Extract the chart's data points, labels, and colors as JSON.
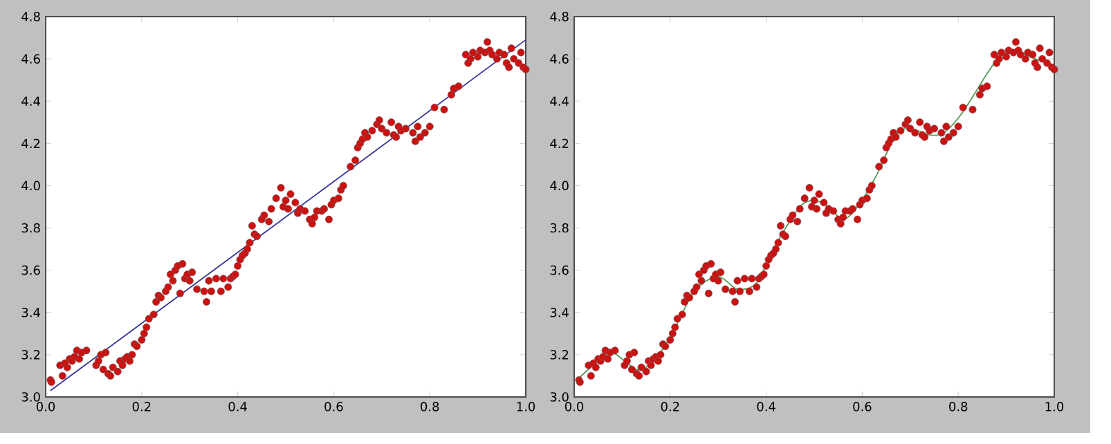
{
  "chart_data": [
    {
      "type": "scatter",
      "xlim": [
        0,
        1
      ],
      "ylim": [
        3.0,
        4.8
      ],
      "xticks": [
        {
          "value": 0,
          "label": "0.0"
        },
        {
          "value": 0.2,
          "label": "0.2"
        },
        {
          "value": 0.4,
          "label": "0.4"
        },
        {
          "value": 0.6,
          "label": "0.6"
        },
        {
          "value": 0.8,
          "label": "0.8"
        },
        {
          "value": 1,
          "label": "1.0"
        }
      ],
      "yticks": [
        {
          "value": 3.0,
          "label": "3.0"
        },
        {
          "value": 3.2,
          "label": "3.2"
        },
        {
          "value": 3.4,
          "label": "3.4"
        },
        {
          "value": 3.6,
          "label": "3.6"
        },
        {
          "value": 3.8,
          "label": "3.8"
        },
        {
          "value": 4.0,
          "label": "4.0"
        },
        {
          "value": 4.2,
          "label": "4.2"
        },
        {
          "value": 4.4,
          "label": "4.4"
        },
        {
          "value": 4.6,
          "label": "4.6"
        },
        {
          "value": 4.8,
          "label": "4.8"
        }
      ],
      "series": [
        {
          "type": "scatter",
          "marker": "circle",
          "color": "#cc1111",
          "x": [
            0.01,
            0.012,
            0.03,
            0.035,
            0.04,
            0.045,
            0.05,
            0.055,
            0.06,
            0.065,
            0.07,
            0.075,
            0.085,
            0.105,
            0.11,
            0.115,
            0.12,
            0.125,
            0.13,
            0.135,
            0.14,
            0.15,
            0.155,
            0.16,
            0.165,
            0.17,
            0.175,
            0.18,
            0.185,
            0.19,
            0.2,
            0.205,
            0.21,
            0.215,
            0.225,
            0.23,
            0.235,
            0.24,
            0.25,
            0.255,
            0.26,
            0.265,
            0.27,
            0.275,
            0.28,
            0.285,
            0.29,
            0.295,
            0.3,
            0.305,
            0.315,
            0.33,
            0.335,
            0.34,
            0.345,
            0.355,
            0.365,
            0.37,
            0.38,
            0.385,
            0.39,
            0.395,
            0.4,
            0.405,
            0.41,
            0.415,
            0.42,
            0.425,
            0.43,
            0.435,
            0.44,
            0.45,
            0.455,
            0.465,
            0.47,
            0.48,
            0.49,
            0.495,
            0.5,
            0.505,
            0.51,
            0.52,
            0.525,
            0.53,
            0.54,
            0.55,
            0.555,
            0.56,
            0.565,
            0.575,
            0.58,
            0.59,
            0.595,
            0.6,
            0.61,
            0.615,
            0.62,
            0.635,
            0.645,
            0.65,
            0.655,
            0.66,
            0.665,
            0.67,
            0.68,
            0.69,
            0.695,
            0.7,
            0.71,
            0.72,
            0.725,
            0.73,
            0.735,
            0.74,
            0.75,
            0.765,
            0.77,
            0.775,
            0.78,
            0.79,
            0.8,
            0.81,
            0.83,
            0.845,
            0.85,
            0.86,
            0.875,
            0.88,
            0.885,
            0.89,
            0.9,
            0.905,
            0.915,
            0.92,
            0.925,
            0.93,
            0.94,
            0.945,
            0.955,
            0.96,
            0.965,
            0.97,
            0.975,
            0.985,
            0.99,
            0.995,
            1.0
          ],
          "values": [
            3.08,
            3.07,
            3.15,
            3.1,
            3.16,
            3.14,
            3.18,
            3.17,
            3.19,
            3.22,
            3.18,
            3.21,
            3.22,
            3.15,
            3.17,
            3.2,
            3.13,
            3.21,
            3.11,
            3.1,
            3.14,
            3.12,
            3.17,
            3.15,
            3.18,
            3.19,
            3.17,
            3.2,
            3.25,
            3.24,
            3.27,
            3.3,
            3.33,
            3.37,
            3.39,
            3.45,
            3.48,
            3.47,
            3.5,
            3.52,
            3.58,
            3.55,
            3.6,
            3.62,
            3.49,
            3.63,
            3.56,
            3.58,
            3.55,
            3.59,
            3.51,
            3.5,
            3.45,
            3.55,
            3.5,
            3.56,
            3.5,
            3.56,
            3.52,
            3.56,
            3.57,
            3.58,
            3.62,
            3.65,
            3.67,
            3.68,
            3.7,
            3.73,
            3.81,
            3.77,
            3.76,
            3.84,
            3.86,
            3.83,
            3.89,
            3.94,
            3.99,
            3.9,
            3.93,
            3.89,
            3.96,
            3.92,
            3.87,
            3.89,
            3.88,
            3.84,
            3.82,
            3.85,
            3.88,
            3.88,
            3.89,
            3.84,
            3.91,
            3.93,
            3.94,
            3.98,
            4.0,
            4.09,
            4.12,
            4.18,
            4.2,
            4.22,
            4.25,
            4.23,
            4.26,
            4.29,
            4.31,
            4.27,
            4.25,
            4.3,
            4.24,
            4.23,
            4.28,
            4.26,
            4.27,
            4.25,
            4.21,
            4.28,
            4.23,
            4.25,
            4.28,
            4.37,
            4.36,
            4.43,
            4.46,
            4.47,
            4.62,
            4.58,
            4.6,
            4.63,
            4.61,
            4.64,
            4.63,
            4.68,
            4.64,
            4.62,
            4.6,
            4.63,
            4.62,
            4.58,
            4.56,
            4.65,
            4.6,
            4.58,
            4.63,
            4.56,
            4.55
          ]
        },
        {
          "type": "line",
          "color": "#333399",
          "x": [
            0.01,
            1.0
          ],
          "values": [
            3.03,
            4.69
          ]
        }
      ]
    },
    {
      "type": "scatter",
      "xlim": [
        0,
        1
      ],
      "ylim": [
        3.0,
        4.8
      ],
      "xticks": [
        {
          "value": 0,
          "label": "0.0"
        },
        {
          "value": 0.2,
          "label": "0.2"
        },
        {
          "value": 0.4,
          "label": "0.4"
        },
        {
          "value": 0.6,
          "label": "0.6"
        },
        {
          "value": 0.8,
          "label": "0.8"
        },
        {
          "value": 1,
          "label": "1.0"
        }
      ],
      "yticks": [
        {
          "value": 3.0,
          "label": "3.0"
        },
        {
          "value": 3.2,
          "label": "3.2"
        },
        {
          "value": 3.4,
          "label": "3.4"
        },
        {
          "value": 3.6,
          "label": "3.6"
        },
        {
          "value": 3.8,
          "label": "3.8"
        },
        {
          "value": 4.0,
          "label": "4.0"
        },
        {
          "value": 4.2,
          "label": "4.2"
        },
        {
          "value": 4.4,
          "label": "4.4"
        },
        {
          "value": 4.6,
          "label": "4.6"
        },
        {
          "value": 4.8,
          "label": "4.8"
        }
      ],
      "series": [
        {
          "type": "scatter",
          "marker": "circle",
          "color": "#cc1111",
          "x": [
            0.01,
            0.012,
            0.03,
            0.035,
            0.04,
            0.045,
            0.05,
            0.055,
            0.06,
            0.065,
            0.07,
            0.075,
            0.085,
            0.105,
            0.11,
            0.115,
            0.12,
            0.125,
            0.13,
            0.135,
            0.14,
            0.15,
            0.155,
            0.16,
            0.165,
            0.17,
            0.175,
            0.18,
            0.185,
            0.19,
            0.2,
            0.205,
            0.21,
            0.215,
            0.225,
            0.23,
            0.235,
            0.24,
            0.25,
            0.255,
            0.26,
            0.265,
            0.27,
            0.275,
            0.28,
            0.285,
            0.29,
            0.295,
            0.3,
            0.305,
            0.315,
            0.33,
            0.335,
            0.34,
            0.345,
            0.355,
            0.365,
            0.37,
            0.38,
            0.385,
            0.39,
            0.395,
            0.4,
            0.405,
            0.41,
            0.415,
            0.42,
            0.425,
            0.43,
            0.435,
            0.44,
            0.45,
            0.455,
            0.465,
            0.47,
            0.48,
            0.49,
            0.495,
            0.5,
            0.505,
            0.51,
            0.52,
            0.525,
            0.53,
            0.54,
            0.55,
            0.555,
            0.56,
            0.565,
            0.575,
            0.58,
            0.59,
            0.595,
            0.6,
            0.61,
            0.615,
            0.62,
            0.635,
            0.645,
            0.65,
            0.655,
            0.66,
            0.665,
            0.67,
            0.68,
            0.69,
            0.695,
            0.7,
            0.71,
            0.72,
            0.725,
            0.73,
            0.735,
            0.74,
            0.75,
            0.765,
            0.77,
            0.775,
            0.78,
            0.79,
            0.8,
            0.81,
            0.83,
            0.845,
            0.85,
            0.86,
            0.875,
            0.88,
            0.885,
            0.89,
            0.9,
            0.905,
            0.915,
            0.92,
            0.925,
            0.93,
            0.94,
            0.945,
            0.955,
            0.96,
            0.965,
            0.97,
            0.975,
            0.985,
            0.99,
            0.995,
            1.0
          ],
          "values": [
            3.08,
            3.07,
            3.15,
            3.1,
            3.16,
            3.14,
            3.18,
            3.17,
            3.19,
            3.22,
            3.18,
            3.21,
            3.22,
            3.15,
            3.17,
            3.2,
            3.13,
            3.21,
            3.11,
            3.1,
            3.14,
            3.12,
            3.17,
            3.15,
            3.18,
            3.19,
            3.17,
            3.2,
            3.25,
            3.24,
            3.27,
            3.3,
            3.33,
            3.37,
            3.39,
            3.45,
            3.48,
            3.47,
            3.5,
            3.52,
            3.58,
            3.55,
            3.6,
            3.62,
            3.49,
            3.63,
            3.56,
            3.58,
            3.55,
            3.59,
            3.51,
            3.5,
            3.45,
            3.55,
            3.5,
            3.56,
            3.5,
            3.56,
            3.52,
            3.56,
            3.57,
            3.58,
            3.62,
            3.65,
            3.67,
            3.68,
            3.7,
            3.73,
            3.81,
            3.77,
            3.76,
            3.84,
            3.86,
            3.83,
            3.89,
            3.94,
            3.99,
            3.9,
            3.93,
            3.89,
            3.96,
            3.92,
            3.87,
            3.89,
            3.88,
            3.84,
            3.82,
            3.85,
            3.88,
            3.88,
            3.89,
            3.84,
            3.91,
            3.93,
            3.94,
            3.98,
            4.0,
            4.09,
            4.12,
            4.18,
            4.2,
            4.22,
            4.25,
            4.23,
            4.26,
            4.29,
            4.31,
            4.27,
            4.25,
            4.3,
            4.24,
            4.23,
            4.28,
            4.26,
            4.27,
            4.25,
            4.21,
            4.28,
            4.23,
            4.25,
            4.28,
            4.37,
            4.36,
            4.43,
            4.46,
            4.47,
            4.62,
            4.58,
            4.6,
            4.63,
            4.61,
            4.64,
            4.63,
            4.68,
            4.64,
            4.62,
            4.6,
            4.63,
            4.62,
            4.58,
            4.56,
            4.65,
            4.6,
            4.58,
            4.63,
            4.56,
            4.55
          ]
        },
        {
          "type": "line",
          "color": "#559955",
          "x": [
            0.01,
            0.05,
            0.08,
            0.13,
            0.16,
            0.2,
            0.25,
            0.3,
            0.34,
            0.38,
            0.42,
            0.47,
            0.5,
            0.53,
            0.56,
            0.59,
            0.63,
            0.67,
            0.7,
            0.74,
            0.77,
            0.81,
            0.86,
            0.89,
            0.92,
            0.96,
            1.0
          ],
          "values": [
            3.09,
            3.17,
            3.21,
            3.13,
            3.16,
            3.28,
            3.5,
            3.57,
            3.51,
            3.54,
            3.72,
            3.9,
            3.93,
            3.9,
            3.84,
            3.9,
            4.05,
            4.24,
            4.27,
            4.24,
            4.25,
            4.35,
            4.53,
            4.62,
            4.64,
            4.6,
            4.57
          ]
        }
      ]
    }
  ]
}
